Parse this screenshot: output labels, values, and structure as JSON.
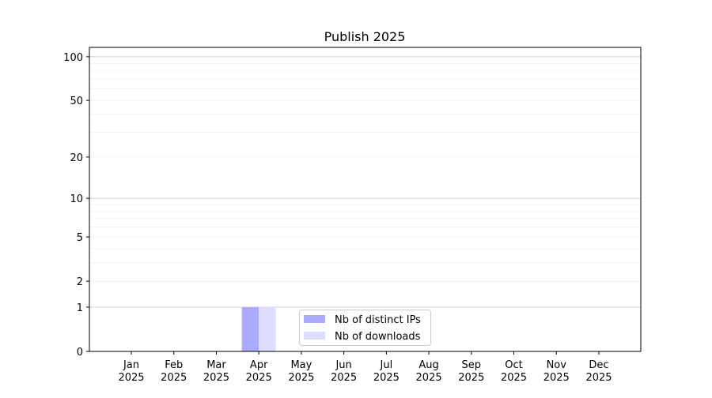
{
  "chart_data": {
    "type": "bar",
    "title": "Publish 2025",
    "xlabel": "",
    "ylabel": "",
    "y_scale": "symlog (log of 1+y)",
    "ylim": [
      0,
      116
    ],
    "y_ticks": [
      0,
      1,
      2,
      5,
      10,
      20,
      50,
      100
    ],
    "y_tick_labels": [
      "0",
      "1",
      "2",
      "5",
      "10",
      "20",
      "50",
      "100"
    ],
    "grid": true,
    "legend_position": "bottom-center",
    "categories": [
      "Jan\n2025",
      "Feb\n2025",
      "Mar\n2025",
      "Apr\n2025",
      "May\n2025",
      "Jun\n2025",
      "Jul\n2025",
      "Aug\n2025",
      "Sep\n2025",
      "Oct\n2025",
      "Nov\n2025",
      "Dec\n2025"
    ],
    "month_labels": [
      "Jan",
      "Feb",
      "Mar",
      "Apr",
      "May",
      "Jun",
      "Jul",
      "Aug",
      "Sep",
      "Oct",
      "Nov",
      "Dec"
    ],
    "year_label": "2025",
    "series": [
      {
        "name": "Nb of distinct IPs",
        "color": "#aaaaff",
        "values": [
          0,
          0,
          0,
          1,
          0,
          0,
          0,
          0,
          0,
          0,
          0,
          0
        ]
      },
      {
        "name": "Nb of downloads",
        "color": "#ddddff",
        "values": [
          0,
          0,
          0,
          1,
          0,
          0,
          0,
          0,
          0,
          0,
          0,
          0
        ]
      }
    ]
  }
}
